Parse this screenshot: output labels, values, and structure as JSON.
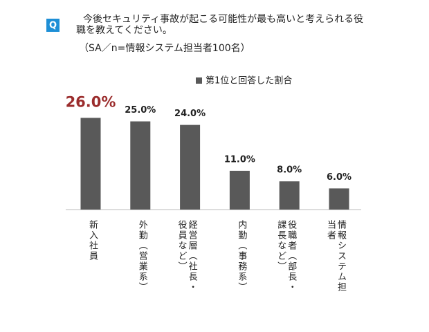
{
  "chart_data": {
    "type": "bar",
    "title": "今後セキュリティ事故が起こる可能性が最も高いと考えられる役職を教えてください。",
    "subtitle": "（SA／n=情報システム担当者100名）",
    "question_mark": "Q",
    "categories": [
      "新入社員",
      "外勤（営業系）",
      "経営層（社長・役員など）",
      "内勤（事務系）",
      "役職者（部長・課長など）",
      "情報システム担当者"
    ],
    "series": [
      {
        "name": "第1位と回答した割合",
        "color": "#595959",
        "values": [
          26,
          25,
          24,
          11,
          8,
          6
        ],
        "value_labels": [
          "26.0%",
          "25.0%",
          "24.0%",
          "11.0%",
          "8.0%",
          "6.0%"
        ]
      }
    ],
    "highlight_color": "#9b2d2d"
  }
}
